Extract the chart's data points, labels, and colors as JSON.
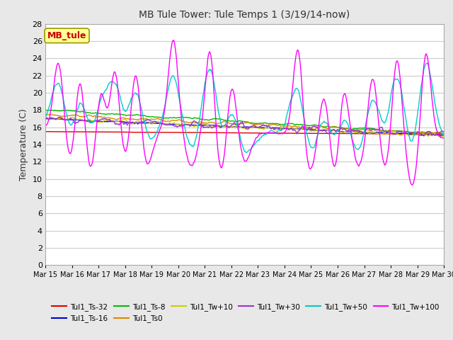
{
  "title": "MB Tule Tower: Tule Temps 1 (3/19/14-now)",
  "ylabel": "Temperature (C)",
  "ylim": [
    0,
    28
  ],
  "yticks": [
    0,
    2,
    4,
    6,
    8,
    10,
    12,
    14,
    16,
    18,
    20,
    22,
    24,
    26,
    28
  ],
  "xlabel_dates": [
    "Mar 15",
    "Mar 16",
    "Mar 17",
    "Mar 18",
    "Mar 19",
    "Mar 20",
    "Mar 21",
    "Mar 22",
    "Mar 23",
    "Mar 24",
    "Mar 25",
    "Mar 26",
    "Mar 27",
    "Mar 28",
    "Mar 29",
    "Mar 30"
  ],
  "series": {
    "Tul1_Ts-32": {
      "color": "#dd0000",
      "lw": 1.0
    },
    "Tul1_Ts-16": {
      "color": "#0000cc",
      "lw": 1.0
    },
    "Tul1_Ts-8": {
      "color": "#00bb00",
      "lw": 1.0
    },
    "Tul1_Ts0": {
      "color": "#dd8800",
      "lw": 1.0
    },
    "Tul1_Tw+10": {
      "color": "#cccc00",
      "lw": 1.0
    },
    "Tul1_Tw+30": {
      "color": "#9933cc",
      "lw": 1.0
    },
    "Tul1_Tw+50": {
      "color": "#00cccc",
      "lw": 1.0
    },
    "Tul1_Tw+100": {
      "color": "#ff00ff",
      "lw": 1.0
    }
  },
  "annotation_box": {
    "text": "MB_tule",
    "facecolor": "#ffff99",
    "edgecolor": "#999900",
    "textcolor": "#cc0000"
  },
  "background_color": "#e8e8e8",
  "plot_background": "#ffffff",
  "grid_color": "#cccccc",
  "legend_labels": [
    "Tul1_Ts-32",
    "Tul1_Ts-16",
    "Tul1_Ts-8",
    "Tul1_Ts0",
    "Tul1_Tw+10",
    "Tul1_Tw+30",
    "Tul1_Tw+50",
    "Tul1_Tw+100"
  ]
}
